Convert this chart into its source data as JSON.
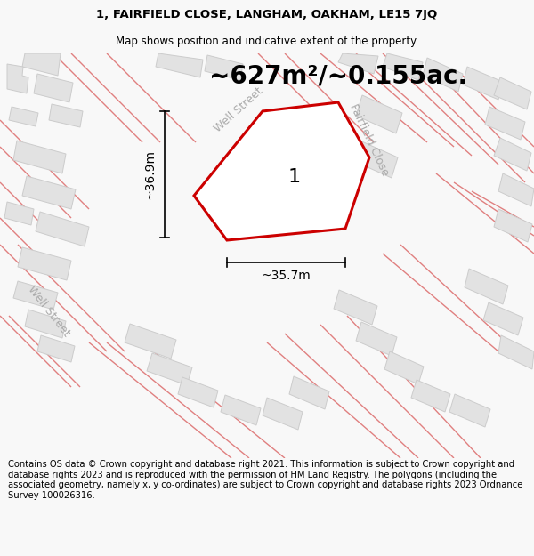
{
  "title_line1": "1, FAIRFIELD CLOSE, LANGHAM, OAKHAM, LE15 7JQ",
  "title_line2": "Map shows position and indicative extent of the property.",
  "area_text": "~627m²/~0.155ac.",
  "dim_vertical": "~36.9m",
  "dim_horizontal": "~35.7m",
  "property_label": "1",
  "street_label1": "Well Street",
  "street_label2": "Fairfield Close",
  "street_label3": "Well Street",
  "footer_text": "Contains OS data © Crown copyright and database right 2021. This information is subject to Crown copyright and database rights 2023 and is reproduced with the permission of HM Land Registry. The polygons (including the associated geometry, namely x, y co-ordinates) are subject to Crown copyright and database rights 2023 Ordnance Survey 100026316.",
  "bg_color": "#f8f8f8",
  "map_bg_color": "#f2f2f2",
  "building_fill": "#e2e2e2",
  "building_stroke": "#cccccc",
  "road_color": "#e08080",
  "property_fill": "#ffffff",
  "property_stroke": "#cc0000",
  "dim_line_color": "#000000",
  "text_color": "#000000",
  "street_color": "#aaaaaa",
  "title_fontsize": 9.5,
  "subtitle_fontsize": 8.5,
  "area_fontsize": 20,
  "label_fontsize": 16,
  "dim_fontsize": 10,
  "street_fontsize": 9,
  "footer_fontsize": 7.2
}
